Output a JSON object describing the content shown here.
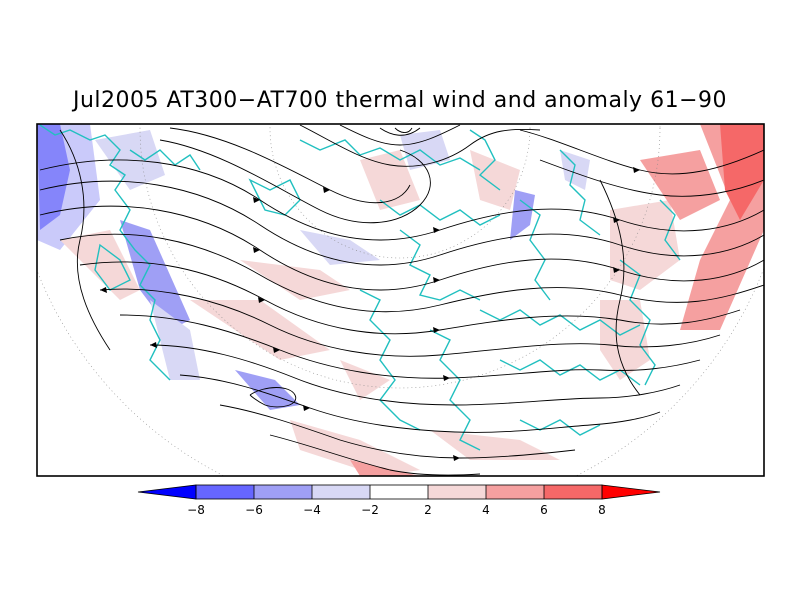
{
  "title": "Jul2005 AT300−AT700 thermal wind and anomaly 61−90",
  "colorbar": {
    "labels": [
      "−8",
      "−6",
      "−4",
      "−2",
      "2",
      "4",
      "6",
      "8"
    ],
    "colors": [
      "#0000ff",
      "#6666ff",
      "#9f9ff5",
      "#d8d8f5",
      "#ffffff",
      "#f5d8d8",
      "#f5a0a0",
      "#f56868",
      "#ff0000"
    ]
  },
  "map": {
    "projection": "polar stereographic, Northern Hemisphere",
    "coastline_color": "#22c0c0",
    "streamline_color": "#000000"
  }
}
